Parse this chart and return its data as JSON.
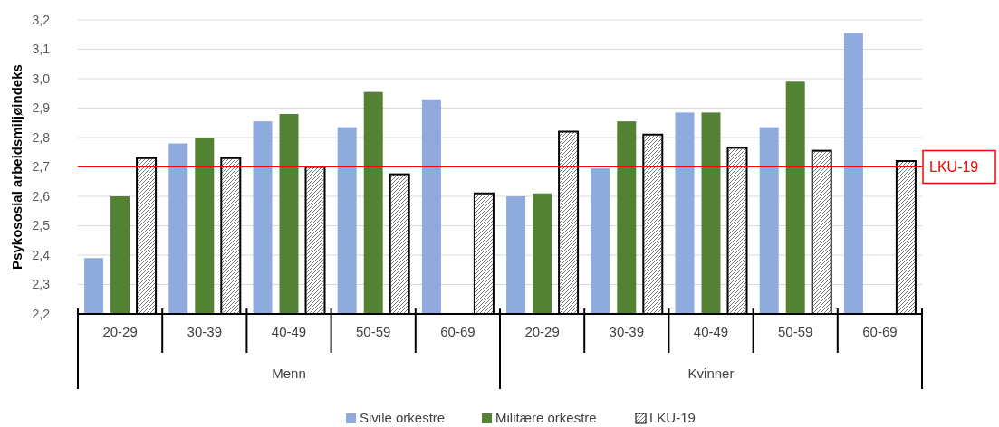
{
  "chart_data": {
    "type": "bar",
    "ylabel": "Psykososial arbeidsmiljøindeks",
    "categories": [
      "20-29",
      "30-39",
      "40-49",
      "50-59",
      "60-69",
      "20-29",
      "30-39",
      "40-49",
      "50-59",
      "60-69"
    ],
    "annotations": [
      "Menn",
      "Kvinner"
    ],
    "series": [
      {
        "name": "Sivile orkestre",
        "color": "#8faadc",
        "values": [
          2.39,
          2.78,
          2.855,
          2.835,
          2.93,
          2.6,
          2.695,
          2.885,
          2.835,
          3.155
        ]
      },
      {
        "name": "Militære orkestre",
        "color": "#548235",
        "values": [
          2.6,
          2.8,
          2.88,
          2.955,
          null,
          2.61,
          2.855,
          2.885,
          2.99,
          null
        ]
      },
      {
        "name": "LKU-19",
        "color": "#000000",
        "values": [
          2.73,
          2.73,
          2.7,
          2.675,
          2.61,
          2.82,
          2.81,
          2.765,
          2.755,
          2.72
        ]
      }
    ],
    "ylim": [
      2.2,
      3.2
    ],
    "yticks": [
      {
        "value": 2.2,
        "label": "2,2"
      },
      {
        "value": 2.3,
        "label": "2,3"
      },
      {
        "value": 2.4,
        "label": "2,4"
      },
      {
        "value": 2.5,
        "label": "2,5"
      },
      {
        "value": 2.6,
        "label": "2,6"
      },
      {
        "value": 2.7,
        "label": "2,7"
      },
      {
        "value": 2.8,
        "label": "2,8"
      },
      {
        "value": 2.9,
        "label": "2,9"
      },
      {
        "value": 3.0,
        "label": "3,0"
      },
      {
        "value": 3.1,
        "label": "3,1"
      },
      {
        "value": 3.2,
        "label": "3,2"
      }
    ],
    "ref_lines": [
      {
        "axis": "y",
        "value": 2.7,
        "label": "LKU-19",
        "color": "#ff0000"
      }
    ],
    "grid": "y",
    "legend": "bottom"
  }
}
